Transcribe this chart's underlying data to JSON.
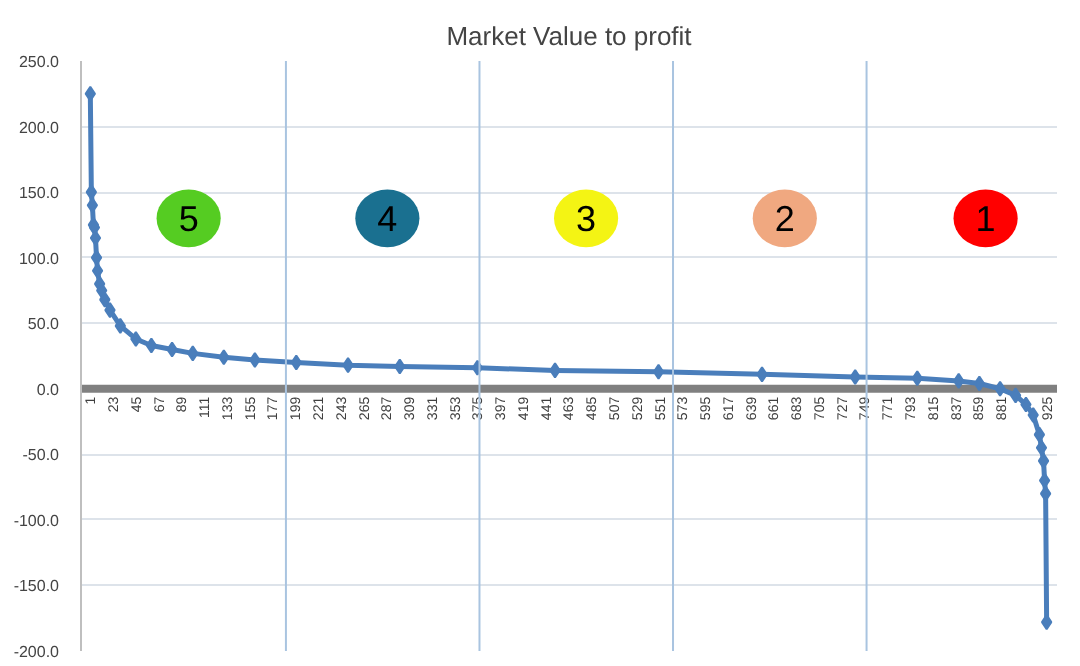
{
  "chart_data": {
    "type": "line",
    "title": "Market Value to profit",
    "series": [
      {
        "color": "#4a7ebb",
        "x": [
          1,
          2,
          3,
          4,
          5,
          6,
          7,
          8,
          10,
          12,
          15,
          20,
          30,
          45,
          60,
          80,
          100,
          130,
          160,
          200,
          250,
          300,
          375,
          450,
          550,
          650,
          740,
          800,
          840,
          860,
          880,
          895,
          905,
          912,
          918,
          920,
          922,
          923,
          924,
          925
        ],
        "values": [
          225,
          150,
          140,
          125,
          123,
          115,
          100,
          90,
          80,
          75,
          68,
          60,
          48,
          38,
          33,
          30,
          27,
          24,
          22,
          20,
          18,
          17,
          16,
          14,
          13,
          11,
          9,
          8,
          6,
          4,
          0,
          -5,
          -12,
          -20,
          -35,
          -45,
          -55,
          -70,
          -80,
          -178
        ]
      }
    ],
    "marker": "diamond",
    "line_style": "solid",
    "xlim": [
      -8,
      935
    ],
    "xticks": [
      1,
      23,
      45,
      67,
      89,
      111,
      133,
      155,
      177,
      199,
      221,
      243,
      265,
      287,
      309,
      331,
      353,
      375,
      397,
      419,
      441,
      463,
      485,
      507,
      529,
      551,
      573,
      595,
      617,
      639,
      661,
      683,
      705,
      727,
      749,
      771,
      793,
      815,
      837,
      859,
      881,
      925
    ],
    "ylim": [
      -200,
      250
    ],
    "yticks": [
      {
        "value": -200,
        "label": "-200.0"
      },
      {
        "value": -150,
        "label": "-150.0"
      },
      {
        "value": -100,
        "label": "-100.0"
      },
      {
        "value": -50,
        "label": "-50.0"
      },
      {
        "value": 0,
        "label": "0.0"
      },
      {
        "value": 50,
        "label": "50.0"
      },
      {
        "value": 100,
        "label": "100.0"
      },
      {
        "value": 150,
        "label": "150.0"
      },
      {
        "value": 200,
        "label": "200.0"
      },
      {
        "value": 250,
        "label": "250.0"
      }
    ],
    "grid": "y",
    "ref_lines": [
      {
        "axis": "x",
        "value": 190,
        "color": "#a9c4e0"
      },
      {
        "axis": "x",
        "value": 377,
        "color": "#a9c4e0"
      },
      {
        "axis": "x",
        "value": 564,
        "color": "#a9c4e0"
      },
      {
        "axis": "x",
        "value": 751,
        "color": "#a9c4e0"
      }
    ],
    "annotations": [
      {
        "text": "5",
        "x": 96,
        "y": 130
      },
      {
        "text": "4",
        "x": 288,
        "y": 130
      },
      {
        "text": "3",
        "x": 480,
        "y": 130
      },
      {
        "text": "2",
        "x": 672,
        "y": 130
      },
      {
        "text": "1",
        "x": 866,
        "y": 130
      }
    ]
  }
}
